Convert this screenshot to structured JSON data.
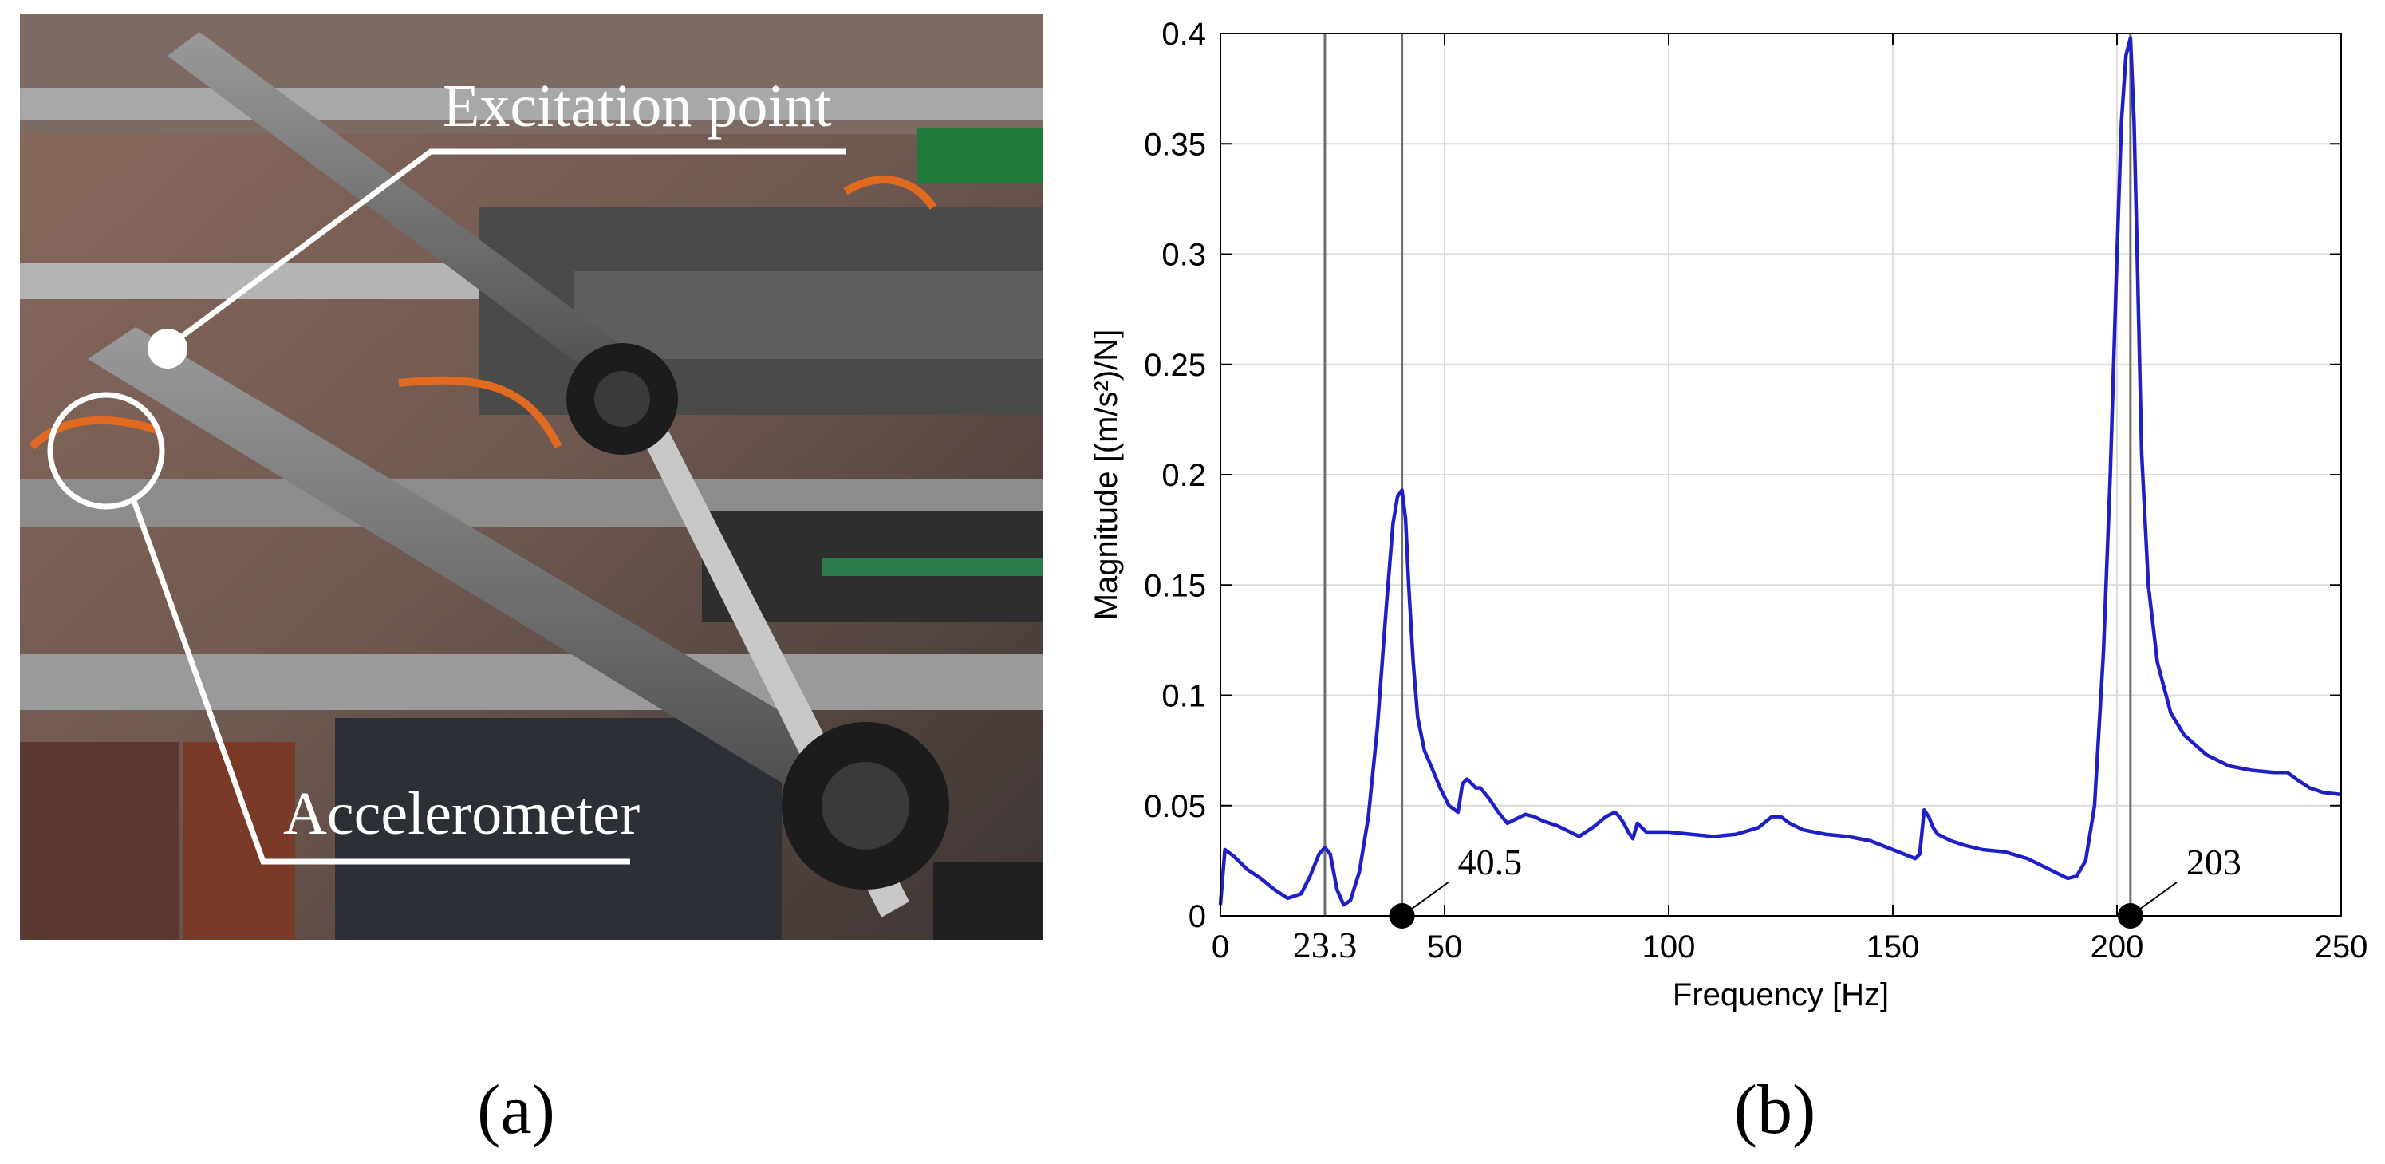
{
  "photo": {
    "excitation_label": "Excitation point",
    "accelerometer_label": "Accelerometer",
    "caption": "(a)"
  },
  "chart_caption": "(b)",
  "chart_data": {
    "type": "line",
    "xlabel": "Frequency [Hz]",
    "ylabel": "Magnitude [(m/s²)/N]",
    "xlim": [
      0,
      250
    ],
    "ylim": [
      0,
      0.4
    ],
    "x_ticks": [
      0,
      50,
      100,
      150,
      200,
      250
    ],
    "x_tick_labels": [
      "0",
      "50",
      "100",
      "150",
      "200",
      "250"
    ],
    "y_ticks": [
      0,
      0.05,
      0.1,
      0.15,
      0.2,
      0.25,
      0.3,
      0.35,
      0.4
    ],
    "y_tick_labels": [
      "0",
      "0.05",
      "0.1",
      "0.15",
      "0.2",
      "0.25",
      "0.3",
      "0.35",
      "0.4"
    ],
    "extra_x_tick": {
      "value": 23.3,
      "label": "23.3"
    },
    "grid": true,
    "line_color": "#1f1fc8",
    "marker_lines": [
      23.3,
      40.5,
      203
    ],
    "annotations": [
      {
        "x": 40.5,
        "label": "40.5"
      },
      {
        "x": 203,
        "label": "203"
      }
    ],
    "series": [
      {
        "x": [
          0,
          1,
          3,
          6,
          9,
          12,
          15,
          18,
          20,
          22,
          23.3,
          24.5,
          26,
          27.5,
          29,
          31,
          33,
          35,
          37,
          38.5,
          39.5,
          40.5,
          41.3,
          42,
          43,
          44,
          45.5,
          47,
          49,
          51,
          53,
          54,
          55,
          57,
          58,
          60,
          62,
          64,
          66,
          68,
          70,
          72,
          75,
          78,
          80,
          83,
          86,
          88,
          89,
          90,
          91,
          92,
          93,
          94,
          95,
          97,
          100,
          105,
          110,
          115,
          120,
          123,
          125,
          127,
          130,
          135,
          140,
          145,
          150,
          155,
          156,
          157,
          158,
          159,
          160,
          163,
          166,
          170,
          175,
          180,
          185,
          189,
          191,
          193,
          195,
          197,
          198.5,
          200,
          201,
          202,
          203,
          203.8,
          204.5,
          205.5,
          207,
          209,
          212,
          215,
          220,
          225,
          230,
          235,
          238,
          240,
          243,
          246,
          250
        ],
        "y": [
          0.005,
          0.03,
          0.027,
          0.021,
          0.017,
          0.012,
          0.008,
          0.01,
          0.018,
          0.028,
          0.031,
          0.028,
          0.012,
          0.005,
          0.007,
          0.02,
          0.045,
          0.085,
          0.14,
          0.178,
          0.19,
          0.193,
          0.18,
          0.15,
          0.115,
          0.09,
          0.075,
          0.068,
          0.058,
          0.05,
          0.047,
          0.06,
          0.062,
          0.058,
          0.058,
          0.053,
          0.047,
          0.042,
          0.044,
          0.046,
          0.045,
          0.043,
          0.041,
          0.038,
          0.036,
          0.04,
          0.045,
          0.047,
          0.045,
          0.042,
          0.038,
          0.035,
          0.042,
          0.04,
          0.038,
          0.038,
          0.038,
          0.037,
          0.036,
          0.037,
          0.04,
          0.045,
          0.045,
          0.042,
          0.039,
          0.037,
          0.036,
          0.034,
          0.03,
          0.026,
          0.028,
          0.048,
          0.045,
          0.04,
          0.037,
          0.034,
          0.032,
          0.03,
          0.029,
          0.026,
          0.021,
          0.017,
          0.018,
          0.025,
          0.05,
          0.12,
          0.2,
          0.3,
          0.36,
          0.39,
          0.398,
          0.36,
          0.3,
          0.21,
          0.15,
          0.115,
          0.092,
          0.082,
          0.073,
          0.068,
          0.066,
          0.065,
          0.065,
          0.062,
          0.058,
          0.056,
          0.055
        ]
      }
    ]
  }
}
